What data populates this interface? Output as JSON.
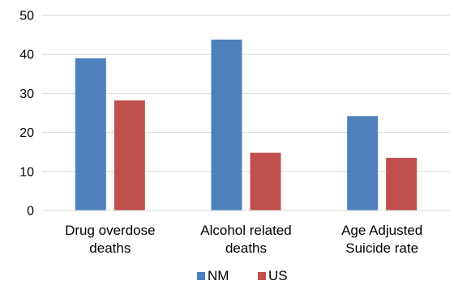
{
  "chart_data": {
    "type": "bar",
    "categories": [
      [
        "Drug overdose",
        "deaths"
      ],
      [
        "Alcohol related",
        "deaths"
      ],
      [
        "Age Adjusted",
        "Suicide rate"
      ]
    ],
    "series": [
      {
        "name": "NM",
        "color": "#4F81BD",
        "values": [
          39,
          43.8,
          24.2
        ]
      },
      {
        "name": "US",
        "color": "#C0504D",
        "values": [
          28.2,
          14.8,
          13.5
        ]
      }
    ],
    "ylim": [
      0,
      50
    ],
    "yticks": [
      0,
      10,
      20,
      30,
      40,
      50
    ],
    "grid": true,
    "gridline_color": "#D9D9D9",
    "legend_position": "bottom"
  }
}
